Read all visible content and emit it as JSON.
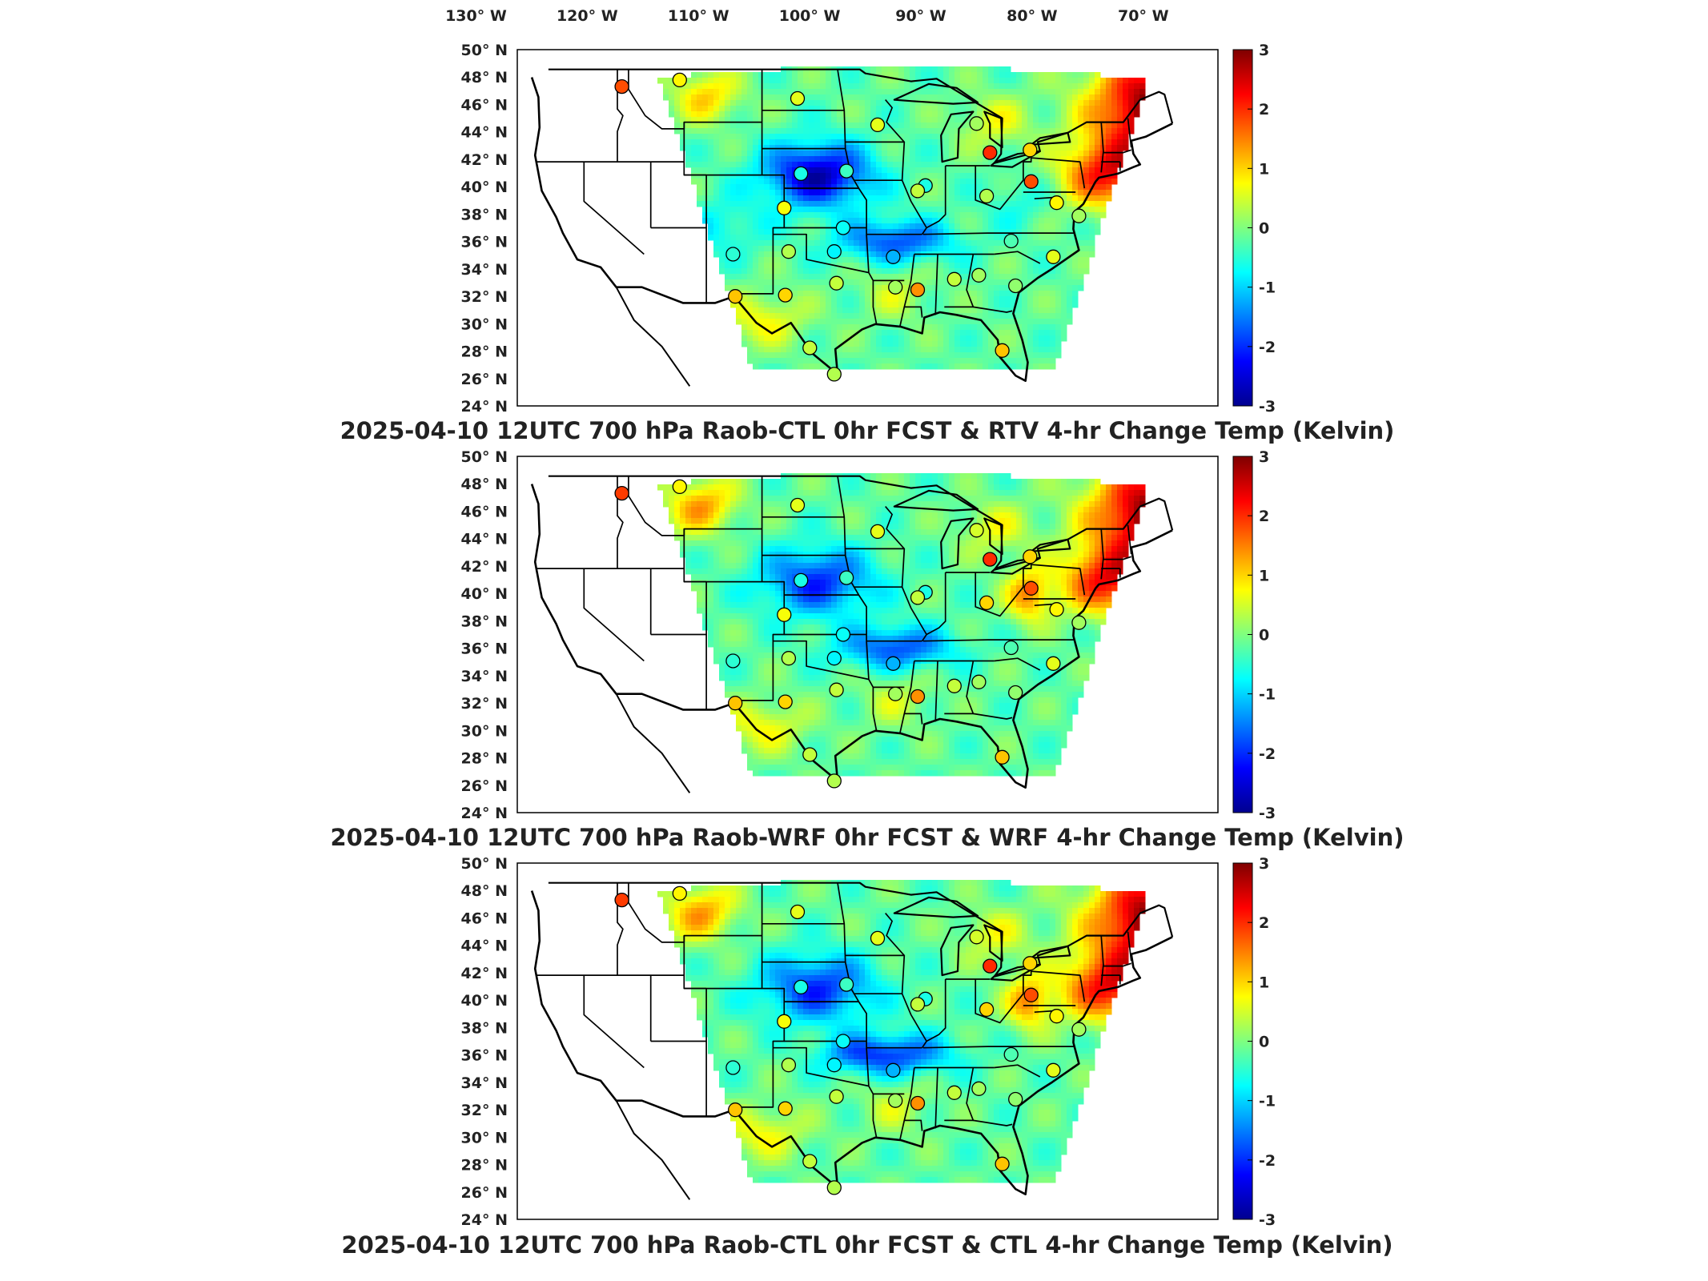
{
  "top_lon_labels": [
    "130",
    "120",
    "110",
    "100",
    "90",
    "80",
    "70"
  ],
  "lon_suffix": "W",
  "lat_labels": [
    "50",
    "48",
    "46",
    "44",
    "42",
    "40",
    "38",
    "36",
    "34",
    "32",
    "30",
    "28",
    "26",
    "24"
  ],
  "lat_suffix": "N",
  "degree_symbol": "°",
  "colorbar": {
    "ticks": [
      "3",
      "2",
      "1",
      "0",
      "-1",
      "-2",
      "-3"
    ],
    "range": [
      -3,
      3
    ],
    "colormap": "jet"
  },
  "panels": [
    {
      "title": "2025-04-10 12UTC 700 hPa Raob-CTL 0hr FCST & RTV 4-hr Change Temp (Kelvin)",
      "variant": "rtv"
    },
    {
      "title": "2025-04-10 12UTC 700 hPa Raob-WRF 0hr FCST & WRF 4-hr Change Temp (Kelvin)",
      "variant": "wrf"
    },
    {
      "title": "2025-04-10 12UTC 700 hPa Raob-CTL 0hr FCST & CTL 4-hr Change Temp (Kelvin)",
      "variant": "ctl"
    }
  ],
  "stations": [
    {
      "lon": -116.6,
      "lat": 47.7,
      "v": [
        1.8,
        1.9,
        1.9
      ]
    },
    {
      "lon": -111.4,
      "lat": 48.2,
      "v": [
        0.8,
        0.8,
        0.8
      ]
    },
    {
      "lon": -100.8,
      "lat": 46.8,
      "v": [
        0.6,
        0.6,
        0.6
      ]
    },
    {
      "lon": -93.6,
      "lat": 44.8,
      "v": [
        0.6,
        0.6,
        0.6
      ]
    },
    {
      "lon": -84.7,
      "lat": 44.9,
      "v": [
        0.2,
        0.5,
        0.5
      ]
    },
    {
      "lon": -83.5,
      "lat": 42.7,
      "v": [
        2.0,
        2.0,
        2.0
      ]
    },
    {
      "lon": -79.9,
      "lat": 42.9,
      "v": [
        1.0,
        1.0,
        1.0
      ]
    },
    {
      "lon": -100.5,
      "lat": 41.1,
      "v": [
        -0.6,
        -0.6,
        -0.6
      ]
    },
    {
      "lon": -96.4,
      "lat": 41.3,
      "v": [
        -0.4,
        -0.4,
        -0.4
      ]
    },
    {
      "lon": -89.3,
      "lat": 40.2,
      "v": [
        -0.6,
        -0.6,
        -0.6
      ]
    },
    {
      "lon": -83.8,
      "lat": 39.4,
      "v": [
        0.3,
        1.0,
        1.0
      ]
    },
    {
      "lon": -79.8,
      "lat": 40.5,
      "v": [
        1.8,
        1.8,
        1.8
      ]
    },
    {
      "lon": -77.5,
      "lat": 38.9,
      "v": [
        0.8,
        0.8,
        0.8
      ]
    },
    {
      "lon": -102.0,
      "lat": 38.5,
      "v": [
        0.7,
        0.7,
        0.7
      ]
    },
    {
      "lon": -96.7,
      "lat": 37.0,
      "v": [
        -0.7,
        -0.7,
        -0.7
      ]
    },
    {
      "lon": -90.0,
      "lat": 39.8,
      "v": [
        0.4,
        0.4,
        0.4
      ]
    },
    {
      "lon": -81.6,
      "lat": 36.0,
      "v": [
        -0.3,
        -0.3,
        -0.3
      ]
    },
    {
      "lon": -106.6,
      "lat": 35.0,
      "v": [
        -0.5,
        -0.5,
        -0.5
      ]
    },
    {
      "lon": -101.6,
      "lat": 35.2,
      "v": [
        0.3,
        0.3,
        0.3
      ]
    },
    {
      "lon": -97.5,
      "lat": 35.2,
      "v": [
        -0.8,
        -0.8,
        -0.8
      ]
    },
    {
      "lon": -92.2,
      "lat": 34.8,
      "v": [
        -1.2,
        -1.2,
        -1.2
      ]
    },
    {
      "lon": -106.4,
      "lat": 31.8,
      "v": [
        1.1,
        1.1,
        1.1
      ]
    },
    {
      "lon": -101.9,
      "lat": 31.9,
      "v": [
        1.0,
        1.0,
        1.0
      ]
    },
    {
      "lon": -97.3,
      "lat": 32.8,
      "v": [
        0.4,
        0.4,
        0.4
      ]
    },
    {
      "lon": -92.0,
      "lat": 32.5,
      "v": [
        0.2,
        0.2,
        0.2
      ]
    },
    {
      "lon": -90.0,
      "lat": 32.3,
      "v": [
        1.4,
        1.4,
        1.4
      ]
    },
    {
      "lon": -86.7,
      "lat": 33.1,
      "v": [
        0.4,
        0.4,
        0.4
      ]
    },
    {
      "lon": -84.5,
      "lat": 33.4,
      "v": [
        0.2,
        0.2,
        0.2
      ]
    },
    {
      "lon": -81.2,
      "lat": 32.6,
      "v": [
        0.1,
        0.1,
        0.1
      ]
    },
    {
      "lon": -99.7,
      "lat": 27.9,
      "v": [
        0.4,
        0.4,
        0.4
      ]
    },
    {
      "lon": -97.5,
      "lat": 25.9,
      "v": [
        0.3,
        0.3,
        0.3
      ]
    },
    {
      "lon": -82.4,
      "lat": 27.7,
      "v": [
        1.1,
        1.1,
        1.1
      ]
    },
    {
      "lon": -77.8,
      "lat": 34.8,
      "v": [
        0.6,
        0.6,
        0.6
      ]
    },
    {
      "lon": -75.5,
      "lat": 37.9,
      "v": [
        0.2,
        0.2,
        0.2
      ]
    }
  ]
}
